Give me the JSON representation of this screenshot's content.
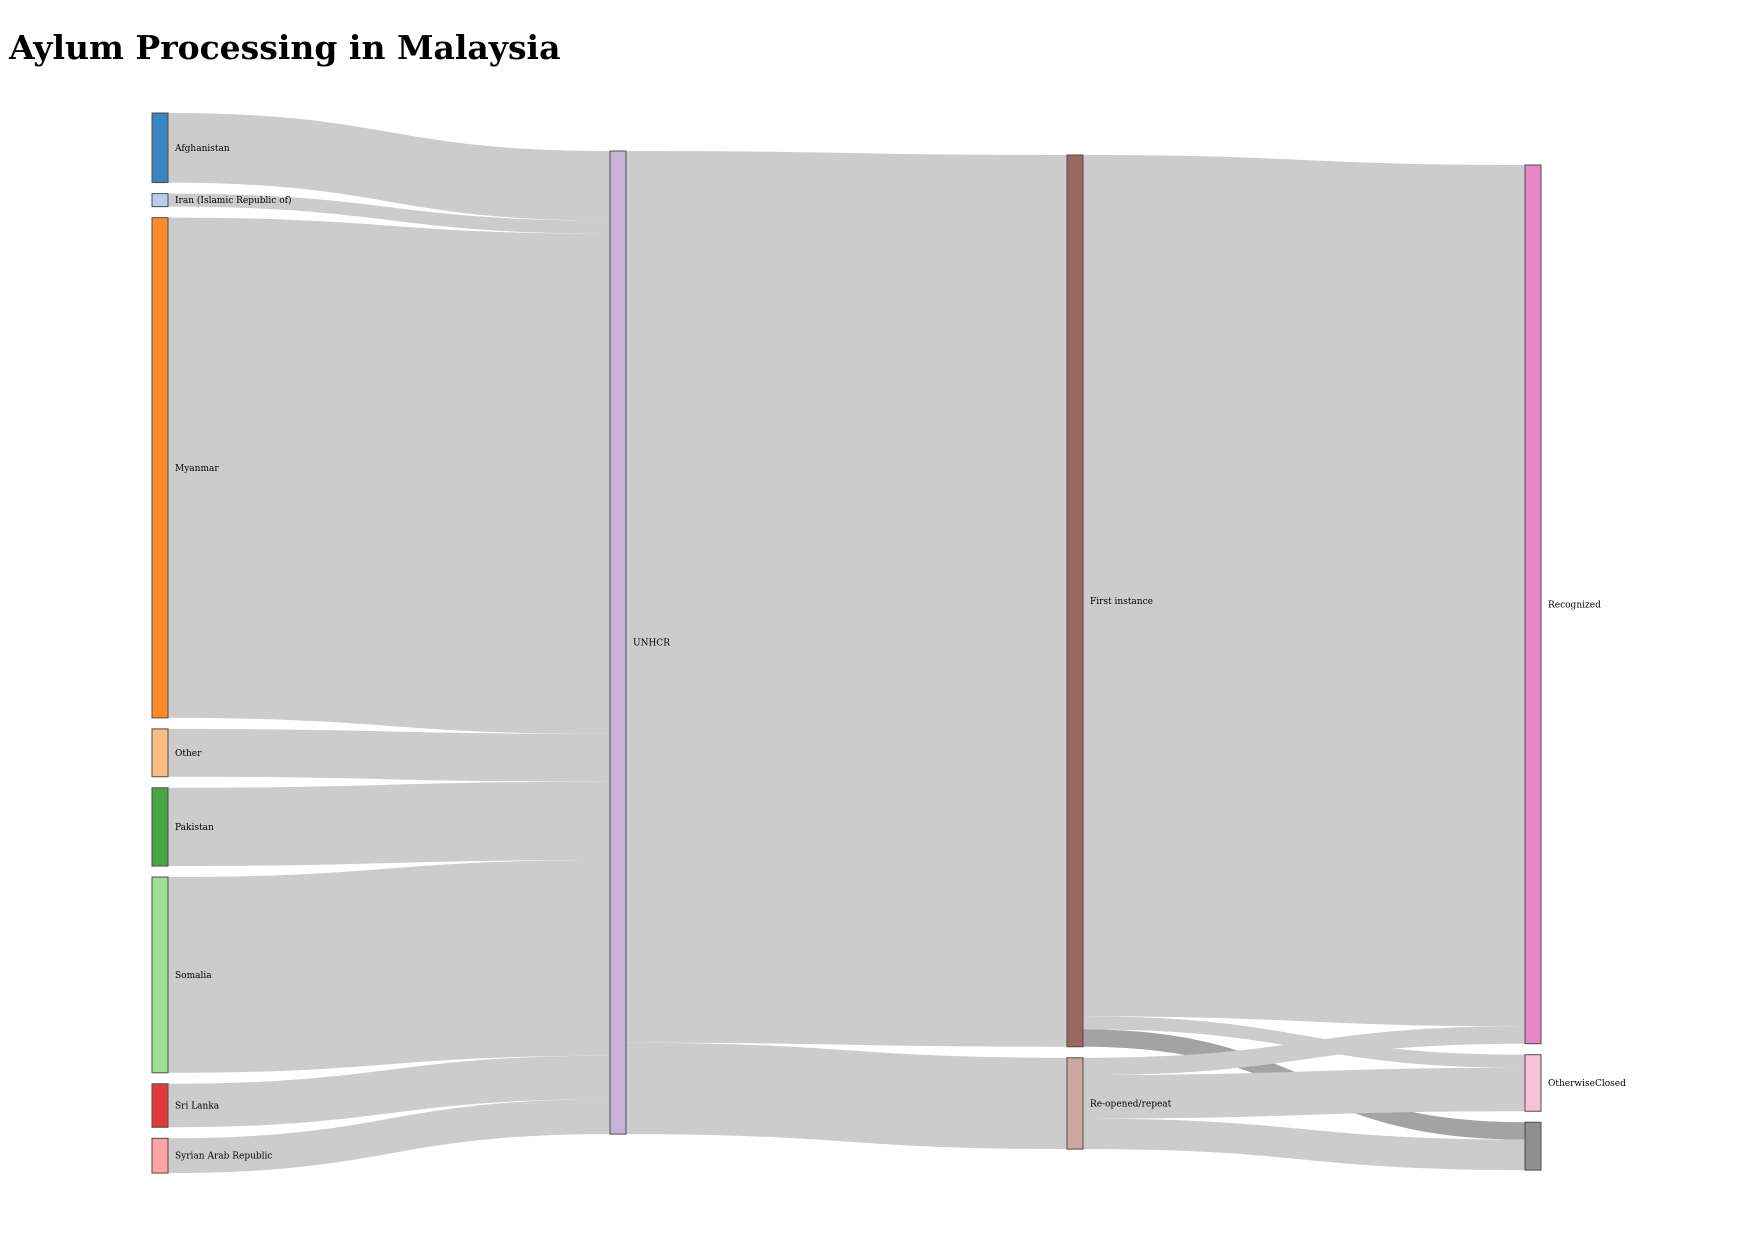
{
  "title": "Aylum Processing in Malaysia",
  "diagram": {
    "type": "sankey",
    "columns": [
      [
        "Afghanistan",
        "Iran (Islamic Republic of)",
        "Myanmar",
        "Other",
        "Pakistan",
        "Somalia",
        "Sri Lanka",
        "Syrian Arab Republic"
      ],
      [
        "UNHCR"
      ],
      [
        "First instance",
        "Re-opened/repeat"
      ],
      [
        "Recognized",
        "OtherwiseClosed",
        ""
      ]
    ],
    "nodes": [
      {
        "id": "afghanistan",
        "label": "Afghanistan",
        "color": "#3a84c0"
      },
      {
        "id": "iran",
        "label": "Iran (Islamic Republic of)",
        "color": "#b7cde9"
      },
      {
        "id": "myanmar",
        "label": "Myanmar",
        "color": "#fb8a2a"
      },
      {
        "id": "other",
        "label": "Other",
        "color": "#fdbd82"
      },
      {
        "id": "pakistan",
        "label": "Pakistan",
        "color": "#45a745"
      },
      {
        "id": "somalia",
        "label": "Somalia",
        "color": "#a0de94"
      },
      {
        "id": "srilanka",
        "label": "Sri Lanka",
        "color": "#de3a3c"
      },
      {
        "id": "syria",
        "label": "Syrian Arab Republic",
        "color": "#fca3a3"
      },
      {
        "id": "unhcr",
        "label": "UNHCR",
        "color": "#c8b2d7"
      },
      {
        "id": "first",
        "label": "First instance",
        "color": "#9a6861"
      },
      {
        "id": "reopened",
        "label": "Re-opened/repeat",
        "color": "#cfa7a1"
      },
      {
        "id": "recognized",
        "label": "Recognized",
        "color": "#e785c9"
      },
      {
        "id": "closed",
        "label": "OtherwiseClosed",
        "color": "#f9c1d8"
      },
      {
        "id": "rejected",
        "label": "",
        "color": "#8f8f8f"
      }
    ],
    "links": [
      {
        "source": "afghanistan",
        "target": "unhcr",
        "value": 16
      },
      {
        "source": "iran",
        "target": "unhcr",
        "value": 3
      },
      {
        "source": "myanmar",
        "target": "unhcr",
        "value": 115
      },
      {
        "source": "other",
        "target": "unhcr",
        "value": 11
      },
      {
        "source": "pakistan",
        "target": "unhcr",
        "value": 18
      },
      {
        "source": "somalia",
        "target": "unhcr",
        "value": 45
      },
      {
        "source": "srilanka",
        "target": "unhcr",
        "value": 10
      },
      {
        "source": "syria",
        "target": "unhcr",
        "value": 8
      },
      {
        "source": "unhcr",
        "target": "first",
        "value": 205
      },
      {
        "source": "unhcr",
        "target": "reopened",
        "value": 21
      },
      {
        "source": "first",
        "target": "recognized",
        "value": 198
      },
      {
        "source": "first",
        "target": "closed",
        "value": 3
      },
      {
        "source": "first",
        "target": "rejected",
        "value": 4
      },
      {
        "source": "reopened",
        "target": "recognized",
        "value": 4
      },
      {
        "source": "reopened",
        "target": "closed",
        "value": 10
      },
      {
        "source": "reopened",
        "target": "rejected",
        "value": 7
      }
    ],
    "highlight_links": [
      12
    ]
  }
}
